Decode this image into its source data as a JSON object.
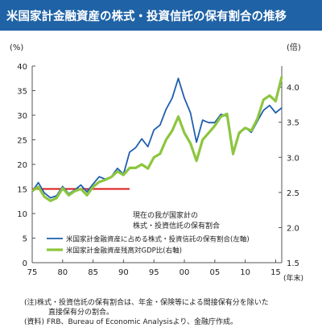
{
  "header": {
    "title": "米国家計金融資産の株式・投資信託の保有割合の推移"
  },
  "colors": {
    "blue": "#1f5fae",
    "green": "#8cc63f",
    "red": "#d9181c",
    "title_bg": "#1f63a6"
  },
  "chart_data": {
    "type": "line",
    "left_axis_unit": "(%)",
    "right_axis_unit": "(倍)",
    "x_unit": "(年末)",
    "x_ticks": [
      "75",
      "80",
      "85",
      "90",
      "95",
      "00",
      "05",
      "10",
      "15"
    ],
    "left_ticks": [
      "0",
      "5",
      "10",
      "15",
      "20",
      "25",
      "30",
      "35",
      "40"
    ],
    "right_ticks": [
      "1.5",
      "2.0",
      "2.5",
      "3.0",
      "3.5",
      "4.0"
    ],
    "xlim": [
      1975,
      2016
    ],
    "ylim_left": [
      0,
      40
    ],
    "ylim_right": [
      1.5,
      4.3
    ],
    "series": [
      {
        "name": "米国家計金融資産に占める株式・投資信託の保有割合(左軸)",
        "axis": "left",
        "color": "#1f5fae",
        "x": [
          1975,
          1976,
          1977,
          1978,
          1979,
          1980,
          1981,
          1982,
          1983,
          1984,
          1985,
          1986,
          1987,
          1988,
          1989,
          1990,
          1991,
          1992,
          1993,
          1994,
          1995,
          1996,
          1997,
          1998,
          1999,
          2000,
          2001,
          2002,
          2003,
          2004,
          2005,
          2006,
          2007,
          2008,
          2009,
          2010,
          2011,
          2012,
          2013,
          2014,
          2015,
          2016
        ],
        "values": [
          14.5,
          16.3,
          14.2,
          13.2,
          13.6,
          15.5,
          14.0,
          14.8,
          15.8,
          14.4,
          16.0,
          17.5,
          17.0,
          17.5,
          19.2,
          18.0,
          22.5,
          23.4,
          25.2,
          23.6,
          27.0,
          28.0,
          31.2,
          33.5,
          37.5,
          33.5,
          30.5,
          24.5,
          29.0,
          28.5,
          28.5,
          30.2,
          29.8,
          22.0,
          26.2,
          27.5,
          26.5,
          28.8,
          31.0,
          32.0,
          30.5,
          31.5
        ]
      },
      {
        "name": "米国家計金融資産残高対GDP比(右軸)",
        "axis": "right",
        "color": "#8cc63f",
        "x": [
          1975,
          1976,
          1977,
          1978,
          1979,
          1980,
          1981,
          1982,
          1983,
          1984,
          1985,
          1986,
          1987,
          1988,
          1989,
          1990,
          1991,
          1992,
          1993,
          1994,
          1995,
          1996,
          1997,
          1998,
          1999,
          2000,
          2001,
          2002,
          2003,
          2004,
          2005,
          2006,
          2007,
          2008,
          2009,
          2010,
          2011,
          2012,
          2013,
          2014,
          2015,
          2016
        ],
        "values": [
          2.52,
          2.58,
          2.44,
          2.38,
          2.42,
          2.56,
          2.46,
          2.52,
          2.55,
          2.46,
          2.58,
          2.65,
          2.68,
          2.72,
          2.8,
          2.75,
          2.85,
          2.85,
          2.9,
          2.84,
          3.0,
          3.05,
          3.25,
          3.38,
          3.58,
          3.35,
          3.2,
          2.95,
          3.25,
          3.35,
          3.45,
          3.58,
          3.62,
          3.05,
          3.35,
          3.42,
          3.38,
          3.55,
          3.82,
          3.88,
          3.8,
          4.15
        ]
      }
    ],
    "reference_line": {
      "value": 15,
      "axis": "left",
      "x_start": 1975,
      "x_end": 1991,
      "color": "#d9181c"
    },
    "annotation_lines": [
      "現在の我が国家計の",
      "株式・投資信託の保有割合"
    ]
  },
  "notes": [
    "(注)株式・投資信託の保有割合は、年金・保険等による間接保有分を除いた",
    "直接保有分の割合。",
    "(資料) FRB、Bureau of Economic Analysisより、金融庁作成。"
  ]
}
